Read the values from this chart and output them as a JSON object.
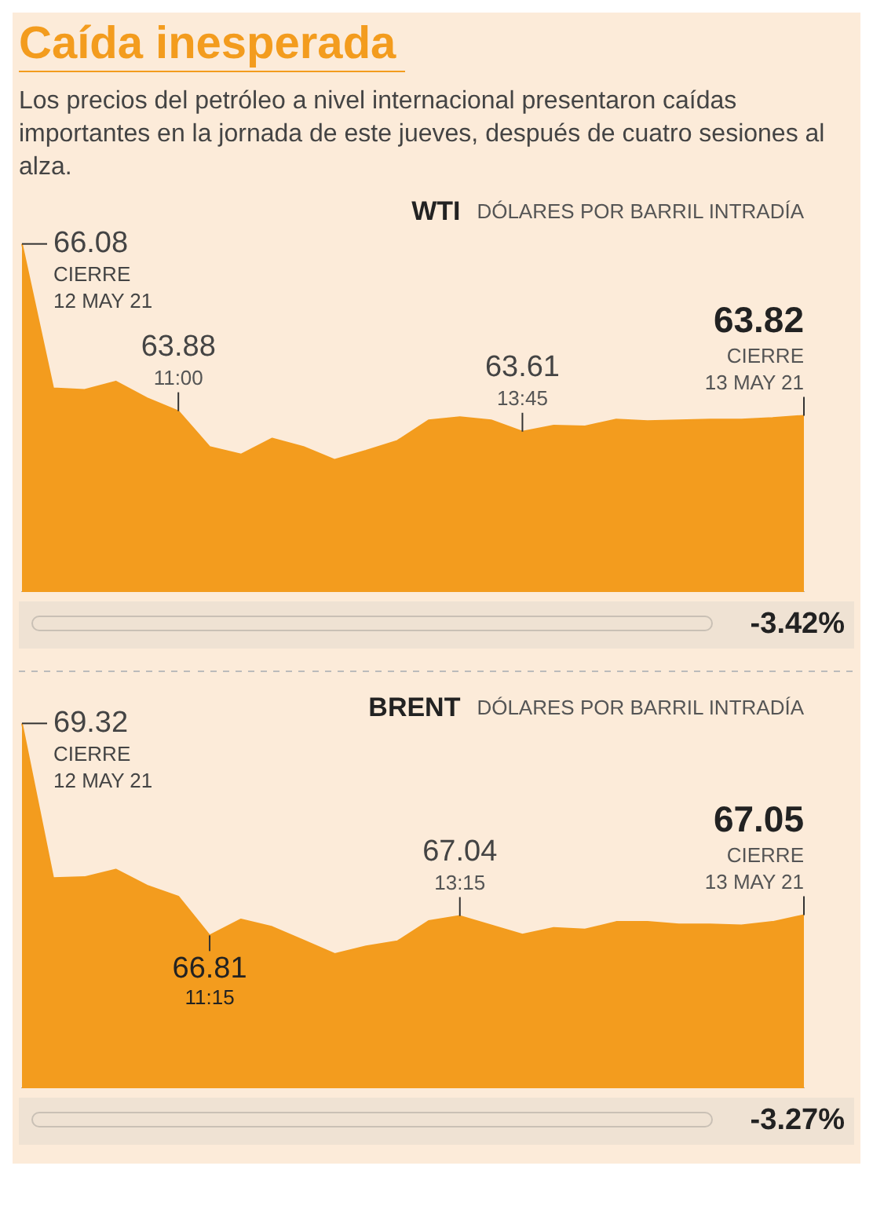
{
  "chart_data": [
    {
      "type": "area",
      "title": "Caída inesperada",
      "subtitle": "Los precios del petróleo a nivel internacional presentaron caídas importantes en la jornada de este jueves, después de cuatro sesiones al alza.",
      "ylabel": "DÓLARES POR BARRIL INTRADÍA",
      "categories": [
        null,
        null,
        null,
        null,
        null,
        null,
        null,
        null,
        null,
        null,
        null,
        null,
        null,
        null,
        null,
        null,
        null,
        null,
        null,
        null,
        null,
        null,
        null,
        null,
        null,
        null
      ],
      "tick_labels": false,
      "series": [
        {
          "name": "WTI",
          "color": "#f39c1e",
          "values": [
            66.08,
            64.18,
            64.16,
            64.27,
            64.05,
            63.88,
            63.41,
            63.31,
            63.52,
            63.41,
            63.24,
            63.36,
            63.49,
            63.76,
            63.8,
            63.76,
            63.61,
            63.69,
            63.68,
            63.77,
            63.75,
            63.76,
            63.77,
            63.77,
            63.79,
            63.82
          ],
          "value_labels": [
            "66.08",
            null,
            null,
            null,
            null,
            "63.88",
            null,
            null,
            null,
            null,
            null,
            null,
            null,
            null,
            null,
            null,
            "63.61",
            null,
            null,
            null,
            null,
            null,
            null,
            null,
            null,
            "63.82"
          ]
        }
      ],
      "annotations": [
        "CIERRE",
        "12 MAY 21",
        {
          "text": "11:00",
          "y": 63.88
        },
        {
          "text": "13:45",
          "y": 63.61
        },
        "CIERRE",
        "13 MAY 21",
        "-3.42%"
      ]
    },
    {
      "type": "area",
      "ylabel": "DÓLARES POR BARRIL INTRADÍA",
      "categories": [
        null,
        null,
        null,
        null,
        null,
        null,
        null,
        null,
        null,
        null,
        null,
        null,
        null,
        null,
        null,
        null,
        null,
        null,
        null,
        null,
        null,
        null,
        null,
        null,
        null,
        null
      ],
      "tick_labels": false,
      "series": [
        {
          "name": "BRENT",
          "color": "#f39c1e",
          "values": [
            69.32,
            67.49,
            67.5,
            67.59,
            67.4,
            67.27,
            66.81,
            67.0,
            66.91,
            66.75,
            66.59,
            66.68,
            66.74,
            66.98,
            67.04,
            66.93,
            66.82,
            66.9,
            66.88,
            66.97,
            66.97,
            66.94,
            66.94,
            66.93,
            66.97,
            67.05
          ],
          "value_labels": [
            "69.32",
            null,
            null,
            null,
            null,
            null,
            "66.81",
            null,
            null,
            null,
            null,
            null,
            null,
            null,
            "67.04",
            null,
            null,
            null,
            null,
            null,
            null,
            null,
            null,
            null,
            null,
            "67.05"
          ]
        }
      ],
      "annotations": [
        "CIERRE",
        "12 MAY 21",
        {
          "text": "11:15",
          "y": 66.81
        },
        {
          "text": "13:15",
          "y": 67.04
        },
        "CIERRE",
        "13 MAY 21",
        "-3.27%"
      ]
    }
  ]
}
